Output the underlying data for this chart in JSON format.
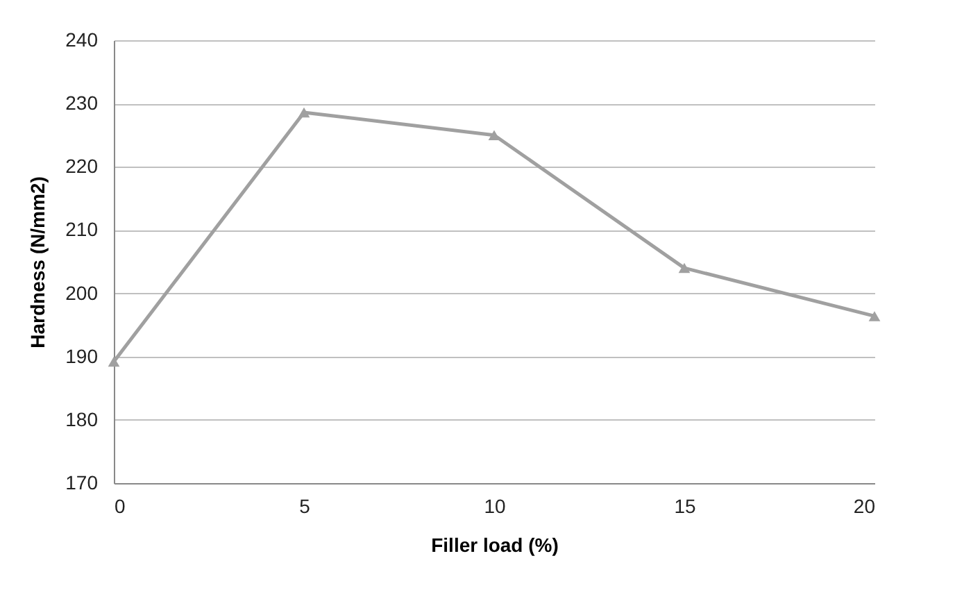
{
  "chart_data": {
    "type": "line",
    "xlabel": "Filler load (%)",
    "ylabel": "Hardness (N/mm2)",
    "x": [
      0,
      5,
      10,
      15,
      20
    ],
    "series": [
      {
        "color": "#a0a0a0",
        "values": [
          189.2,
          228.6,
          225,
          204,
          196.4
        ]
      }
    ],
    "xlim": [
      0,
      20
    ],
    "xticks": [
      0,
      5,
      10,
      15,
      20
    ],
    "ylim": [
      170,
      240
    ],
    "yticks": [
      170,
      180,
      190,
      200,
      210,
      220,
      230,
      240
    ],
    "grid": "y",
    "marker": "triangle",
    "line_style": "solid"
  }
}
